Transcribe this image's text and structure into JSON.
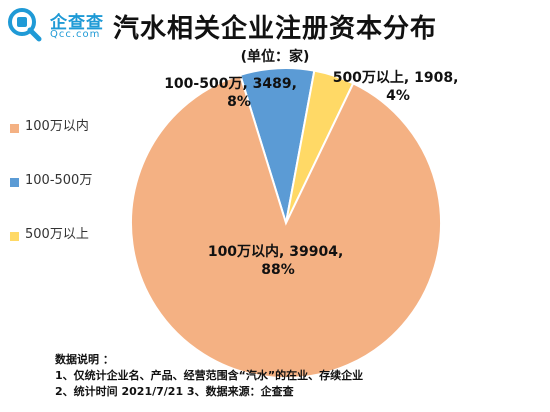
{
  "brand": {
    "name": "企查查",
    "domain": "Qcc.com",
    "color": "#1f9ad6"
  },
  "header": {
    "title": "汽水相关企业注册资本分布",
    "subtitle": "(单位：家)"
  },
  "legend": {
    "items": [
      {
        "label": "100万以内",
        "color": "#f4b183"
      },
      {
        "label": "100-500万",
        "color": "#5b9bd5"
      },
      {
        "label": "500万以上",
        "color": "#ffd966"
      }
    ]
  },
  "chart_data": {
    "type": "pie",
    "title": "汽水相关企业注册资本分布",
    "subtitle": "(单位：家)",
    "slices": [
      {
        "label": "100万以内",
        "value": 39904,
        "percent": "88%",
        "color": "#f4b183"
      },
      {
        "label": "100-500万",
        "value": 3489,
        "percent": "8%",
        "color": "#5b9bd5"
      },
      {
        "label": "500万以上",
        "value": 1908,
        "percent": "4%",
        "color": "#ffd966"
      }
    ],
    "data_labels": [
      {
        "line1": "100万以内, 39904,",
        "line2": "88%"
      },
      {
        "line1": "100-500万, 3489,",
        "line2": "8%"
      },
      {
        "line1": "500万以上, 1908,",
        "line2": "4%"
      }
    ]
  },
  "notes": {
    "heading": "数据说明 ：",
    "line1": "1、仅统计企业名、产品、经营范围含“汽水”的在业、存续企业",
    "line2": "2、统计时间  2021/7/21     3、数据来源：企查查"
  }
}
